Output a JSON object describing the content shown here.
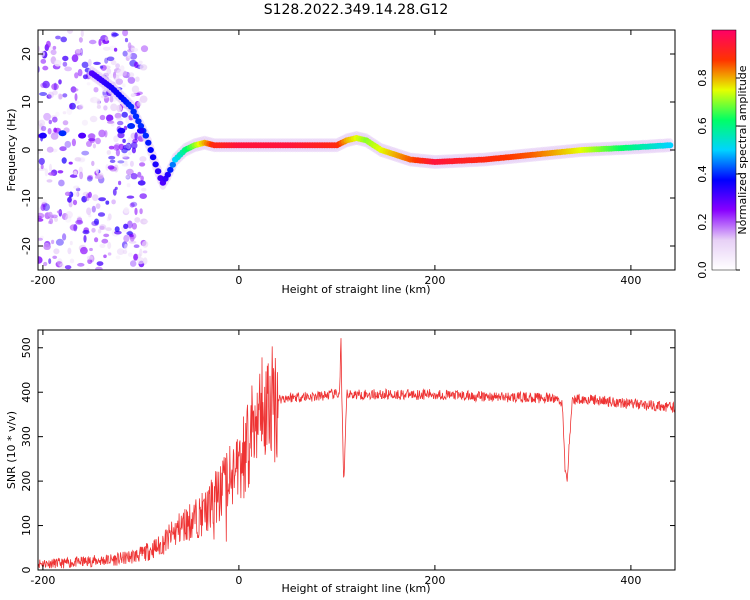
{
  "title": "S128.2022.349.14.28.G12",
  "chart_data": [
    {
      "type": "heatmap",
      "title": "",
      "xlabel": "Height of straight line (km)",
      "ylabel": "Frequency (Hz)",
      "xlim": [
        -205,
        445
      ],
      "ylim": [
        -25,
        25
      ],
      "xticks": [
        -200,
        0,
        200,
        400
      ],
      "yticks": [
        -20,
        -10,
        0,
        10,
        20
      ],
      "colorbar": {
        "label": "Normalized spectral amplitude",
        "range": [
          0,
          1
        ],
        "ticks": [
          0.0,
          0.2,
          0.4,
          0.6,
          0.8
        ],
        "colormap": [
          "#ffffff",
          "#e7d0f6",
          "#8800ff",
          "#0000ff",
          "#00d4ff",
          "#00ff66",
          "#e6ff00",
          "#ff3300",
          "#ff0066"
        ]
      },
      "ridge": {
        "x": [
          -150,
          -130,
          -110,
          -95,
          -85,
          -78,
          -72,
          -65,
          -55,
          -45,
          -35,
          -25,
          0,
          50,
          100,
          110,
          120,
          130,
          145,
          160,
          175,
          200,
          250,
          300,
          350,
          400,
          440
        ],
        "freq": [
          16,
          13,
          9,
          3,
          -3,
          -7,
          -5,
          -2,
          0,
          1,
          1.5,
          1,
          1,
          1,
          1,
          2,
          2.5,
          2,
          0,
          -1,
          -2,
          -2.5,
          -2,
          -1,
          0,
          0.5,
          1
        ],
        "amplitude": [
          0.3,
          0.35,
          0.4,
          0.4,
          0.35,
          0.3,
          0.35,
          0.5,
          0.6,
          0.7,
          0.8,
          0.9,
          0.95,
          0.95,
          0.9,
          0.8,
          0.75,
          0.7,
          0.75,
          0.8,
          0.85,
          0.95,
          0.9,
          0.85,
          0.75,
          0.6,
          0.5
        ]
      }
    },
    {
      "type": "line",
      "title": "",
      "xlabel": "Height of straight line (km)",
      "ylabel": "SNR (10 * v/v)",
      "xlim": [
        -205,
        445
      ],
      "ylim": [
        0,
        540
      ],
      "xticks": [
        -200,
        0,
        200,
        400
      ],
      "yticks": [
        0,
        100,
        200,
        300,
        400,
        500
      ],
      "color": "#ee3333",
      "series": [
        {
          "x": [
            -205,
            -180,
            -150,
            -120,
            -100,
            -80,
            -70,
            -60,
            -50,
            -40,
            -30,
            -25,
            -20,
            -15,
            -10,
            -5,
            0,
            5,
            10,
            15,
            20,
            25,
            30,
            40,
            60,
            80,
            95,
            100,
            103,
            104,
            105,
            107,
            110,
            150,
            200,
            250,
            300,
            325,
            330,
            333,
            335,
            340,
            345,
            350,
            400,
            445
          ],
          "y": [
            15,
            15,
            20,
            25,
            35,
            55,
            75,
            95,
            110,
            120,
            140,
            160,
            175,
            190,
            205,
            220,
            235,
            255,
            285,
            315,
            345,
            360,
            370,
            385,
            390,
            390,
            395,
            395,
            400,
            535,
            400,
            180,
            395,
            395,
            395,
            390,
            388,
            385,
            375,
            215,
            210,
            380,
            385,
            385,
            375,
            365
          ]
        }
      ]
    }
  ]
}
